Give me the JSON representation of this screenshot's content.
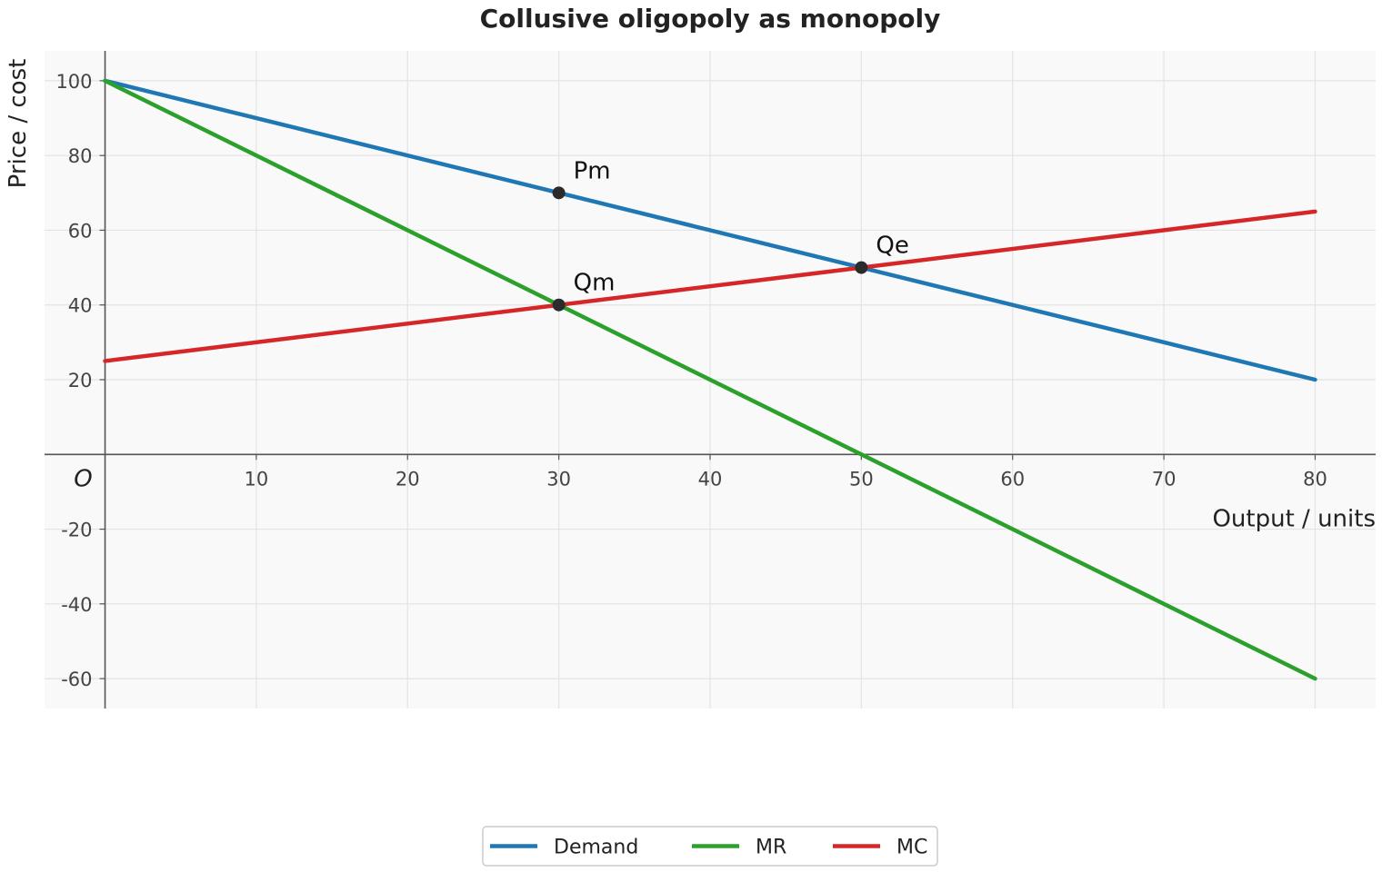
{
  "chart_data": {
    "type": "line",
    "title": "Collusive oligopoly as monopoly",
    "xlabel": "Output / units",
    "ylabel": "Price / cost",
    "origin_label": "O",
    "xlim": [
      -4,
      84
    ],
    "ylim": [
      -68,
      108
    ],
    "x_ticks": [
      10,
      20,
      30,
      40,
      50,
      60,
      70,
      80
    ],
    "y_ticks": [
      -60,
      -40,
      -20,
      20,
      40,
      60,
      80,
      100
    ],
    "grid": true,
    "legend_position": "bottom-center",
    "series": [
      {
        "name": "Demand",
        "color": "#1f77b4",
        "x": [
          0,
          80
        ],
        "y": [
          100,
          20
        ]
      },
      {
        "name": "MR",
        "color": "#2ca02c",
        "x": [
          0,
          80
        ],
        "y": [
          100,
          -60
        ]
      },
      {
        "name": "MC",
        "color": "#d62728",
        "x": [
          0,
          80
        ],
        "y": [
          25,
          65
        ]
      }
    ],
    "points": [
      {
        "label": "Pm",
        "x": 30,
        "y": 70
      },
      {
        "label": "Qm",
        "x": 30,
        "y": 40
      },
      {
        "label": "Qe",
        "x": 50,
        "y": 50
      }
    ]
  }
}
